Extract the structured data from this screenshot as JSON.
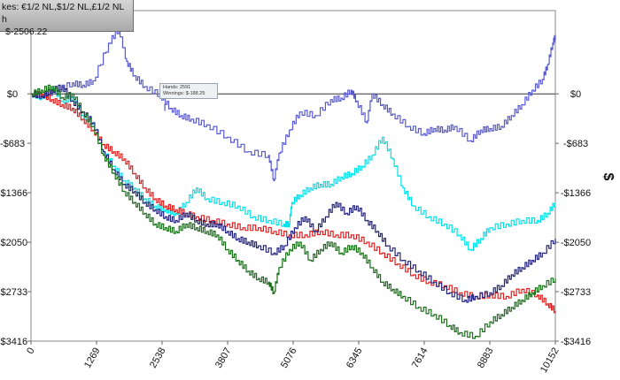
{
  "overlay": {
    "line1": "kes: €1/2 NL,$1/2 NL,£1/2 NL",
    "line2": "h",
    "line3": "$-2506.22"
  },
  "tooltip": {
    "hands": "Hands: 2591",
    "winnings": "Winnings: $-188.25"
  },
  "chart_data": {
    "type": "line",
    "ylabel": "$",
    "xlim": [
      0,
      10152
    ],
    "ylim": [
      -3416,
      1150
    ],
    "x_ticks": [
      0,
      1269,
      2538,
      3807,
      5076,
      6345,
      7614,
      8883,
      10152
    ],
    "x_tick_labels": [
      "0",
      "1269",
      "2538",
      "3807",
      "5076",
      "6345",
      "7614",
      "8883",
      "10152"
    ],
    "y_ticks": [
      0,
      -683,
      -1366,
      -2050,
      -2733,
      -3416
    ],
    "y_tick_labels_left": [
      "$0",
      "-$683",
      "-$1366",
      "-$2050",
      "-$2733",
      "-$3416"
    ],
    "y_tick_labels_right": [
      "$0",
      "-$683",
      "-$1366",
      "-$2050",
      "-$2733",
      "-$3416"
    ],
    "series": [
      {
        "color": "#5a5ad0",
        "points": [
          [
            0,
            0
          ],
          [
            250,
            -20
          ],
          [
            500,
            50
          ],
          [
            800,
            150
          ],
          [
            1000,
            120
          ],
          [
            1200,
            180
          ],
          [
            1500,
            700
          ],
          [
            1700,
            900
          ],
          [
            1850,
            450
          ],
          [
            2000,
            250
          ],
          [
            2200,
            100
          ],
          [
            2500,
            -20
          ],
          [
            2700,
            -200
          ],
          [
            2900,
            -300
          ],
          [
            3100,
            -350
          ],
          [
            3400,
            -430
          ],
          [
            3800,
            -600
          ],
          [
            4200,
            -800
          ],
          [
            4600,
            -850
          ],
          [
            4700,
            -1200
          ],
          [
            4800,
            -820
          ],
          [
            5000,
            -500
          ],
          [
            5200,
            -250
          ],
          [
            5500,
            -300
          ],
          [
            5800,
            -80
          ],
          [
            6000,
            -60
          ],
          [
            6200,
            50
          ],
          [
            6300,
            -100
          ],
          [
            6500,
            -400
          ],
          [
            6600,
            0
          ],
          [
            6800,
            -150
          ],
          [
            7000,
            -280
          ],
          [
            7300,
            -450
          ],
          [
            7600,
            -550
          ],
          [
            7800,
            -480
          ],
          [
            8000,
            -500
          ],
          [
            8200,
            -450
          ],
          [
            8500,
            -650
          ],
          [
            8700,
            -500
          ],
          [
            8883,
            -480
          ],
          [
            9100,
            -450
          ],
          [
            9300,
            -300
          ],
          [
            9500,
            -150
          ],
          [
            9700,
            50
          ],
          [
            9900,
            200
          ],
          [
            10000,
            400
          ],
          [
            10100,
            700
          ],
          [
            10152,
            800
          ]
        ]
      },
      {
        "color": "#00e0e8",
        "points": [
          [
            0,
            0
          ],
          [
            200,
            -50
          ],
          [
            400,
            100
          ],
          [
            600,
            -100
          ],
          [
            800,
            -50
          ],
          [
            1000,
            -300
          ],
          [
            1200,
            -400
          ],
          [
            1400,
            -800
          ],
          [
            1600,
            -1000
          ],
          [
            1800,
            -1200
          ],
          [
            2000,
            -1300
          ],
          [
            2200,
            -1450
          ],
          [
            2400,
            -1550
          ],
          [
            2600,
            -1600
          ],
          [
            2800,
            -1650
          ],
          [
            3000,
            -1500
          ],
          [
            3200,
            -1300
          ],
          [
            3400,
            -1450
          ],
          [
            3700,
            -1500
          ],
          [
            4000,
            -1550
          ],
          [
            4300,
            -1700
          ],
          [
            4600,
            -1750
          ],
          [
            4900,
            -1800
          ],
          [
            5000,
            -1800
          ],
          [
            5050,
            -1500
          ],
          [
            5200,
            -1400
          ],
          [
            5400,
            -1300
          ],
          [
            5600,
            -1250
          ],
          [
            5800,
            -1250
          ],
          [
            6000,
            -1150
          ],
          [
            6200,
            -1100
          ],
          [
            6400,
            -1000
          ],
          [
            6600,
            -850
          ],
          [
            6800,
            -600
          ],
          [
            7000,
            -900
          ],
          [
            7200,
            -1300
          ],
          [
            7400,
            -1550
          ],
          [
            7700,
            -1700
          ],
          [
            8000,
            -1800
          ],
          [
            8300,
            -1950
          ],
          [
            8500,
            -2150
          ],
          [
            8700,
            -2000
          ],
          [
            8883,
            -1850
          ],
          [
            9200,
            -1800
          ],
          [
            9500,
            -1750
          ],
          [
            9800,
            -1750
          ],
          [
            10000,
            -1650
          ],
          [
            10152,
            -1500
          ]
        ]
      },
      {
        "color": "#e02020",
        "points": [
          [
            0,
            0
          ],
          [
            200,
            0
          ],
          [
            400,
            -80
          ],
          [
            600,
            -150
          ],
          [
            800,
            -200
          ],
          [
            1000,
            -350
          ],
          [
            1200,
            -500
          ],
          [
            1400,
            -700
          ],
          [
            1600,
            -800
          ],
          [
            1800,
            -900
          ],
          [
            2000,
            -1100
          ],
          [
            2200,
            -1300
          ],
          [
            2400,
            -1450
          ],
          [
            2600,
            -1550
          ],
          [
            2800,
            -1600
          ],
          [
            3000,
            -1650
          ],
          [
            3200,
            -1700
          ],
          [
            3500,
            -1750
          ],
          [
            3800,
            -1800
          ],
          [
            4100,
            -1850
          ],
          [
            4400,
            -1850
          ],
          [
            4700,
            -1900
          ],
          [
            5000,
            -1950
          ],
          [
            5300,
            -1950
          ],
          [
            5600,
            -1900
          ],
          [
            5900,
            -1950
          ],
          [
            6200,
            -1950
          ],
          [
            6500,
            -2050
          ],
          [
            6800,
            -2200
          ],
          [
            7100,
            -2350
          ],
          [
            7400,
            -2500
          ],
          [
            7700,
            -2600
          ],
          [
            8000,
            -2650
          ],
          [
            8300,
            -2750
          ],
          [
            8600,
            -2800
          ],
          [
            8883,
            -2780
          ],
          [
            9200,
            -2800
          ],
          [
            9500,
            -2700
          ],
          [
            9800,
            -2780
          ],
          [
            10000,
            -2900
          ],
          [
            10152,
            -3000
          ]
        ]
      },
      {
        "color": "#22227a",
        "points": [
          [
            0,
            0
          ],
          [
            200,
            -30
          ],
          [
            400,
            50
          ],
          [
            600,
            100
          ],
          [
            800,
            -100
          ],
          [
            1000,
            -250
          ],
          [
            1200,
            -400
          ],
          [
            1400,
            -800
          ],
          [
            1600,
            -1050
          ],
          [
            1800,
            -1250
          ],
          [
            2000,
            -1350
          ],
          [
            2200,
            -1500
          ],
          [
            2400,
            -1600
          ],
          [
            2600,
            -1700
          ],
          [
            2800,
            -1750
          ],
          [
            3000,
            -1650
          ],
          [
            3200,
            -1750
          ],
          [
            3400,
            -1800
          ],
          [
            3600,
            -1800
          ],
          [
            3800,
            -1900
          ],
          [
            4000,
            -2000
          ],
          [
            4200,
            -2050
          ],
          [
            4400,
            -2100
          ],
          [
            4700,
            -2200
          ],
          [
            4900,
            -2100
          ],
          [
            5100,
            -1850
          ],
          [
            5300,
            -1700
          ],
          [
            5500,
            -1900
          ],
          [
            5700,
            -1700
          ],
          [
            5900,
            -1500
          ],
          [
            6100,
            -1650
          ],
          [
            6300,
            -1550
          ],
          [
            6500,
            -1750
          ],
          [
            6700,
            -1900
          ],
          [
            6900,
            -2100
          ],
          [
            7200,
            -2300
          ],
          [
            7500,
            -2450
          ],
          [
            7800,
            -2600
          ],
          [
            8100,
            -2750
          ],
          [
            8400,
            -2850
          ],
          [
            8600,
            -2800
          ],
          [
            8883,
            -2750
          ],
          [
            9100,
            -2650
          ],
          [
            9300,
            -2500
          ],
          [
            9500,
            -2400
          ],
          [
            9700,
            -2300
          ],
          [
            9900,
            -2200
          ],
          [
            10152,
            -2000
          ]
        ]
      },
      {
        "color": "#1a6e1a",
        "points": [
          [
            0,
            0
          ],
          [
            200,
            50
          ],
          [
            400,
            100
          ],
          [
            600,
            -50
          ],
          [
            800,
            0
          ],
          [
            1000,
            -250
          ],
          [
            1200,
            -450
          ],
          [
            1400,
            -850
          ],
          [
            1600,
            -1100
          ],
          [
            1800,
            -1350
          ],
          [
            2000,
            -1500
          ],
          [
            2200,
            -1650
          ],
          [
            2400,
            -1800
          ],
          [
            2600,
            -1850
          ],
          [
            2800,
            -1900
          ],
          [
            3000,
            -1800
          ],
          [
            3200,
            -1850
          ],
          [
            3400,
            -1900
          ],
          [
            3600,
            -1950
          ],
          [
            3800,
            -2150
          ],
          [
            4000,
            -2300
          ],
          [
            4200,
            -2450
          ],
          [
            4400,
            -2550
          ],
          [
            4600,
            -2600
          ],
          [
            4700,
            -2750
          ],
          [
            4800,
            -2400
          ],
          [
            5000,
            -2150
          ],
          [
            5200,
            -2050
          ],
          [
            5400,
            -2300
          ],
          [
            5600,
            -2150
          ],
          [
            5800,
            -2050
          ],
          [
            6000,
            -2200
          ],
          [
            6200,
            -2100
          ],
          [
            6400,
            -2200
          ],
          [
            6600,
            -2400
          ],
          [
            6800,
            -2600
          ],
          [
            7000,
            -2700
          ],
          [
            7200,
            -2800
          ],
          [
            7500,
            -2950
          ],
          [
            7800,
            -3050
          ],
          [
            8100,
            -3200
          ],
          [
            8300,
            -3300
          ],
          [
            8600,
            -3350
          ],
          [
            8883,
            -3150
          ],
          [
            9100,
            -3050
          ],
          [
            9300,
            -2950
          ],
          [
            9500,
            -2850
          ],
          [
            9700,
            -2750
          ],
          [
            9900,
            -2650
          ],
          [
            10152,
            -2550
          ]
        ]
      }
    ]
  }
}
